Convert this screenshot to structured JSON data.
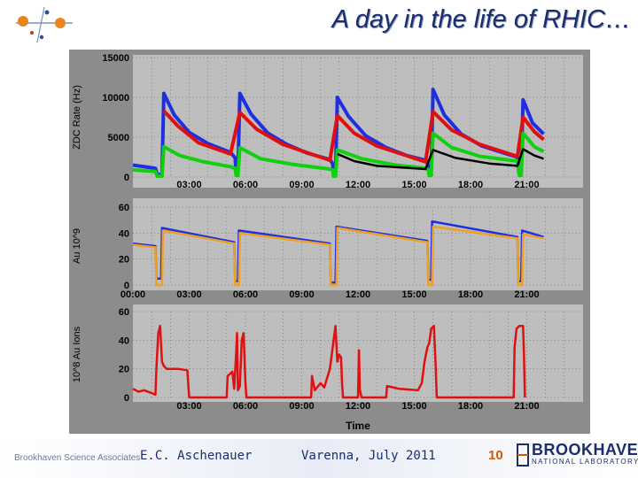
{
  "slide": {
    "title": "A day in the life of RHIC…",
    "footer_org": "Brookhaven Science Associates",
    "author": "E.C. Aschenauer",
    "venue": "Varenna, July 2011",
    "page_number": "10",
    "lab_name": "BROOKHAVEN",
    "lab_subtitle": "NATIONAL LABORATORY"
  },
  "colors": {
    "title": "#1a2d6e",
    "panel_bg": "#bebebe",
    "frame_bg": "#8c8c8c",
    "blue": "#1f2fe0",
    "red": "#e01010",
    "green": "#10d010",
    "black": "#000000",
    "orange": "#f0a020",
    "accent": "#d45a00"
  },
  "chart_data": [
    {
      "type": "line",
      "title": "",
      "ylabel": "ZDC Rate (Hz)",
      "xlabel": "",
      "xlim": [
        0,
        24
      ],
      "ylim": [
        0,
        15000
      ],
      "yticks": [
        "0",
        "5000",
        "10000",
        "15000"
      ],
      "xticks": [
        "03:00",
        "06:00",
        "09:00",
        "12:00",
        "15:00",
        "18:00",
        "21:00"
      ],
      "series": [
        {
          "name": "blue",
          "color": "#1f2fe0",
          "points": [
            [
              0,
              1500
            ],
            [
              1.2,
              1100
            ],
            [
              1.3,
              300
            ],
            [
              1.55,
              300
            ],
            [
              1.65,
              10500
            ],
            [
              2.2,
              7800
            ],
            [
              3,
              5600
            ],
            [
              4,
              4200
            ],
            [
              5.2,
              3100
            ],
            [
              5.45,
              2400
            ],
            [
              5.5,
              600
            ],
            [
              5.6,
              600
            ],
            [
              5.7,
              10500
            ],
            [
              6.3,
              7900
            ],
            [
              7.2,
              5500
            ],
            [
              8.2,
              4100
            ],
            [
              9.3,
              3000
            ],
            [
              10.5,
              2200
            ],
            [
              10.65,
              1700
            ],
            [
              10.7,
              300
            ],
            [
              10.8,
              300
            ],
            [
              10.9,
              10000
            ],
            [
              11.5,
              7600
            ],
            [
              12.4,
              5200
            ],
            [
              13.5,
              3700
            ],
            [
              14.6,
              2700
            ],
            [
              15.6,
              2100
            ],
            [
              15.75,
              1500
            ],
            [
              15.8,
              600
            ],
            [
              15.9,
              600
            ],
            [
              16.0,
              11000
            ],
            [
              16.6,
              7800
            ],
            [
              17.5,
              5400
            ],
            [
              18.6,
              3900
            ],
            [
              19.8,
              3000
            ],
            [
              20.5,
              2500
            ],
            [
              20.6,
              500
            ],
            [
              20.7,
              500
            ],
            [
              20.8,
              9700
            ],
            [
              21.3,
              6800
            ],
            [
              21.9,
              5400
            ]
          ]
        },
        {
          "name": "red",
          "color": "#e01010",
          "points": [
            [
              1.65,
              8300
            ],
            [
              2.4,
              6400
            ],
            [
              3.5,
              4300
            ],
            [
              5.2,
              2900
            ],
            [
              5.7,
              8100
            ],
            [
              6.6,
              6000
            ],
            [
              8,
              4100
            ],
            [
              10.5,
              2100
            ],
            [
              10.9,
              7700
            ],
            [
              11.8,
              5500
            ],
            [
              13,
              3900
            ],
            [
              15.6,
              1900
            ],
            [
              16.0,
              8200
            ],
            [
              17,
              5900
            ],
            [
              18.5,
              4100
            ],
            [
              20.5,
              2600
            ],
            [
              20.8,
              7500
            ],
            [
              21.4,
              5700
            ],
            [
              21.9,
              4700
            ]
          ]
        },
        {
          "name": "green",
          "color": "#10d010",
          "points": [
            [
              0,
              900
            ],
            [
              1.2,
              700
            ],
            [
              1.3,
              100
            ],
            [
              1.55,
              100
            ],
            [
              1.65,
              3800
            ],
            [
              2.5,
              2700
            ],
            [
              3.8,
              1900
            ],
            [
              5.2,
              1300
            ],
            [
              5.45,
              1100
            ],
            [
              5.5,
              200
            ],
            [
              5.6,
              200
            ],
            [
              5.7,
              3700
            ],
            [
              6.8,
              2300
            ],
            [
              8.5,
              1600
            ],
            [
              10.5,
              1000
            ],
            [
              10.65,
              900
            ],
            [
              10.7,
              100
            ],
            [
              10.8,
              100
            ],
            [
              10.9,
              3400
            ],
            [
              12.2,
              2300
            ],
            [
              14,
              1500
            ],
            [
              15.6,
              1100
            ],
            [
              15.75,
              900
            ],
            [
              15.8,
              200
            ],
            [
              15.9,
              200
            ],
            [
              16.0,
              5500
            ],
            [
              17,
              3700
            ],
            [
              18.5,
              2600
            ],
            [
              20.5,
              2000
            ],
            [
              20.6,
              200
            ],
            [
              20.7,
              200
            ],
            [
              20.8,
              5500
            ],
            [
              21.4,
              3800
            ],
            [
              21.9,
              3200
            ]
          ]
        },
        {
          "name": "black",
          "color": "#000000",
          "points": [
            [
              10.9,
              2900
            ],
            [
              11.8,
              2000
            ],
            [
              13,
              1400
            ],
            [
              15.6,
              1000
            ],
            [
              16.0,
              3400
            ],
            [
              17.2,
              2400
            ],
            [
              19,
              1700
            ],
            [
              20.5,
              1400
            ],
            [
              20.8,
              3500
            ],
            [
              21.4,
              2700
            ],
            [
              21.9,
              2300
            ]
          ]
        }
      ]
    },
    {
      "type": "line",
      "title": "",
      "ylabel": "Au 10^9",
      "xlabel": "",
      "xlim": [
        0,
        24
      ],
      "ylim": [
        0,
        60
      ],
      "yticks": [
        "0",
        "20",
        "40",
        "60"
      ],
      "xticks": [
        "00:00",
        "03:00",
        "06:00",
        "09:00",
        "12:00",
        "15:00",
        "18:00",
        "21:00"
      ],
      "series": [
        {
          "name": "blue",
          "color": "#1f2fe0",
          "points": [
            [
              0,
              32
            ],
            [
              1.2,
              30
            ],
            [
              1.25,
              5
            ],
            [
              1.5,
              5
            ],
            [
              1.55,
              44
            ],
            [
              5.4,
              33
            ],
            [
              5.45,
              3
            ],
            [
              5.6,
              3
            ],
            [
              5.65,
              42
            ],
            [
              10.5,
              32
            ],
            [
              10.55,
              2
            ],
            [
              10.8,
              2
            ],
            [
              10.85,
              45
            ],
            [
              15.7,
              34
            ],
            [
              15.75,
              4
            ],
            [
              15.9,
              4
            ],
            [
              15.95,
              49
            ],
            [
              20.5,
              37
            ],
            [
              20.55,
              3
            ],
            [
              20.7,
              3
            ],
            [
              20.75,
              42
            ],
            [
              21.9,
              37
            ]
          ]
        },
        {
          "name": "orange",
          "color": "#f0a020",
          "points": [
            [
              0,
              31
            ],
            [
              1.2,
              29
            ],
            [
              1.25,
              0
            ],
            [
              1.55,
              0
            ],
            [
              1.6,
              42
            ],
            [
              5.4,
              32
            ],
            [
              5.45,
              0
            ],
            [
              5.65,
              0
            ],
            [
              5.7,
              40
            ],
            [
              10.5,
              31
            ],
            [
              10.55,
              0
            ],
            [
              10.85,
              0
            ],
            [
              10.9,
              44
            ],
            [
              15.7,
              33
            ],
            [
              15.75,
              0
            ],
            [
              15.95,
              0
            ],
            [
              16.0,
              45
            ],
            [
              20.5,
              36
            ],
            [
              20.55,
              0
            ],
            [
              20.75,
              0
            ],
            [
              20.8,
              39
            ],
            [
              21.9,
              36
            ]
          ]
        }
      ]
    },
    {
      "type": "line",
      "title": "",
      "ylabel": "10^8 Au Ions",
      "xlabel": "Time",
      "xlim": [
        0,
        24
      ],
      "ylim": [
        0,
        60
      ],
      "yticks": [
        "0",
        "20",
        "40",
        "60"
      ],
      "xticks": [
        "03:00",
        "06:00",
        "09:00",
        "12:00",
        "15:00",
        "18:00",
        "21:00"
      ],
      "series": [
        {
          "name": "red",
          "color": "#e01010",
          "points": [
            [
              0,
              6
            ],
            [
              0.3,
              4
            ],
            [
              0.6,
              5
            ],
            [
              1.0,
              3
            ],
            [
              1.2,
              2
            ],
            [
              1.25,
              20
            ],
            [
              1.35,
              45
            ],
            [
              1.45,
              50
            ],
            [
              1.55,
              25
            ],
            [
              1.65,
              22
            ],
            [
              1.8,
              20
            ],
            [
              2.4,
              20
            ],
            [
              2.9,
              19
            ],
            [
              3.0,
              0
            ],
            [
              5.0,
              0
            ],
            [
              5.05,
              15
            ],
            [
              5.3,
              18
            ],
            [
              5.4,
              6
            ],
            [
              5.5,
              30
            ],
            [
              5.55,
              45
            ],
            [
              5.6,
              5
            ],
            [
              5.7,
              8
            ],
            [
              5.8,
              40
            ],
            [
              5.9,
              45
            ],
            [
              6.0,
              10
            ],
            [
              6.05,
              0
            ],
            [
              9.5,
              0
            ],
            [
              9.55,
              15
            ],
            [
              9.7,
              5
            ],
            [
              10.0,
              10
            ],
            [
              10.2,
              7
            ],
            [
              10.5,
              20
            ],
            [
              10.7,
              40
            ],
            [
              10.8,
              50
            ],
            [
              10.9,
              25
            ],
            [
              11.0,
              30
            ],
            [
              11.1,
              28
            ],
            [
              11.15,
              10
            ],
            [
              11.2,
              0
            ],
            [
              12.0,
              0
            ],
            [
              12.05,
              33
            ],
            [
              12.1,
              5
            ],
            [
              12.2,
              0
            ],
            [
              13.5,
              0
            ],
            [
              13.55,
              8
            ],
            [
              14.2,
              6
            ],
            [
              15.2,
              5
            ],
            [
              15.4,
              10
            ],
            [
              15.55,
              25
            ],
            [
              15.7,
              35
            ],
            [
              15.8,
              38
            ],
            [
              15.9,
              48
            ],
            [
              16.05,
              50
            ],
            [
              16.15,
              20
            ],
            [
              16.2,
              0
            ],
            [
              20.3,
              0
            ],
            [
              20.35,
              35
            ],
            [
              20.45,
              48
            ],
            [
              20.6,
              50
            ],
            [
              20.8,
              50
            ],
            [
              20.85,
              30
            ],
            [
              20.9,
              0
            ]
          ]
        }
      ]
    }
  ]
}
